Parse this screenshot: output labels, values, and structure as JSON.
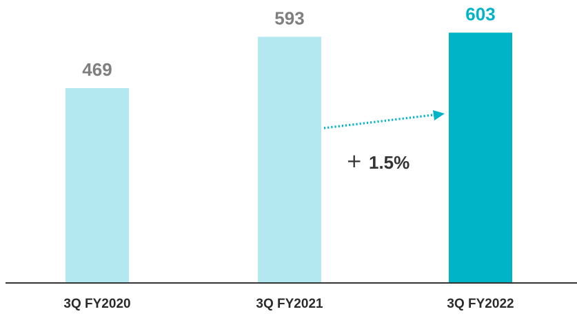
{
  "chart_data": {
    "type": "bar",
    "categories": [
      "3Q FY2020",
      "3Q FY2021",
      "3Q FY2022"
    ],
    "values": [
      469,
      593,
      603
    ],
    "value_labels": [
      "469",
      "593",
      "603"
    ],
    "title": "",
    "xlabel": "",
    "ylabel": "",
    "ylim": [
      0,
      620
    ],
    "grid": false,
    "legend": "none",
    "bar_colors": [
      "#b3e8f0",
      "#b3e8f0",
      "#00b4c8"
    ],
    "value_label_colors": [
      "#7f7f7f",
      "#7f7f7f",
      "#00b4c8"
    ],
    "axis_color": "#333333",
    "annotation": {
      "from_category": "3Q FY2021",
      "to_category": "3Q FY2022",
      "plus_sign": "+",
      "text": "1.5%",
      "arrow_color": "#00b4c8",
      "arrow_style": "dotted"
    }
  }
}
